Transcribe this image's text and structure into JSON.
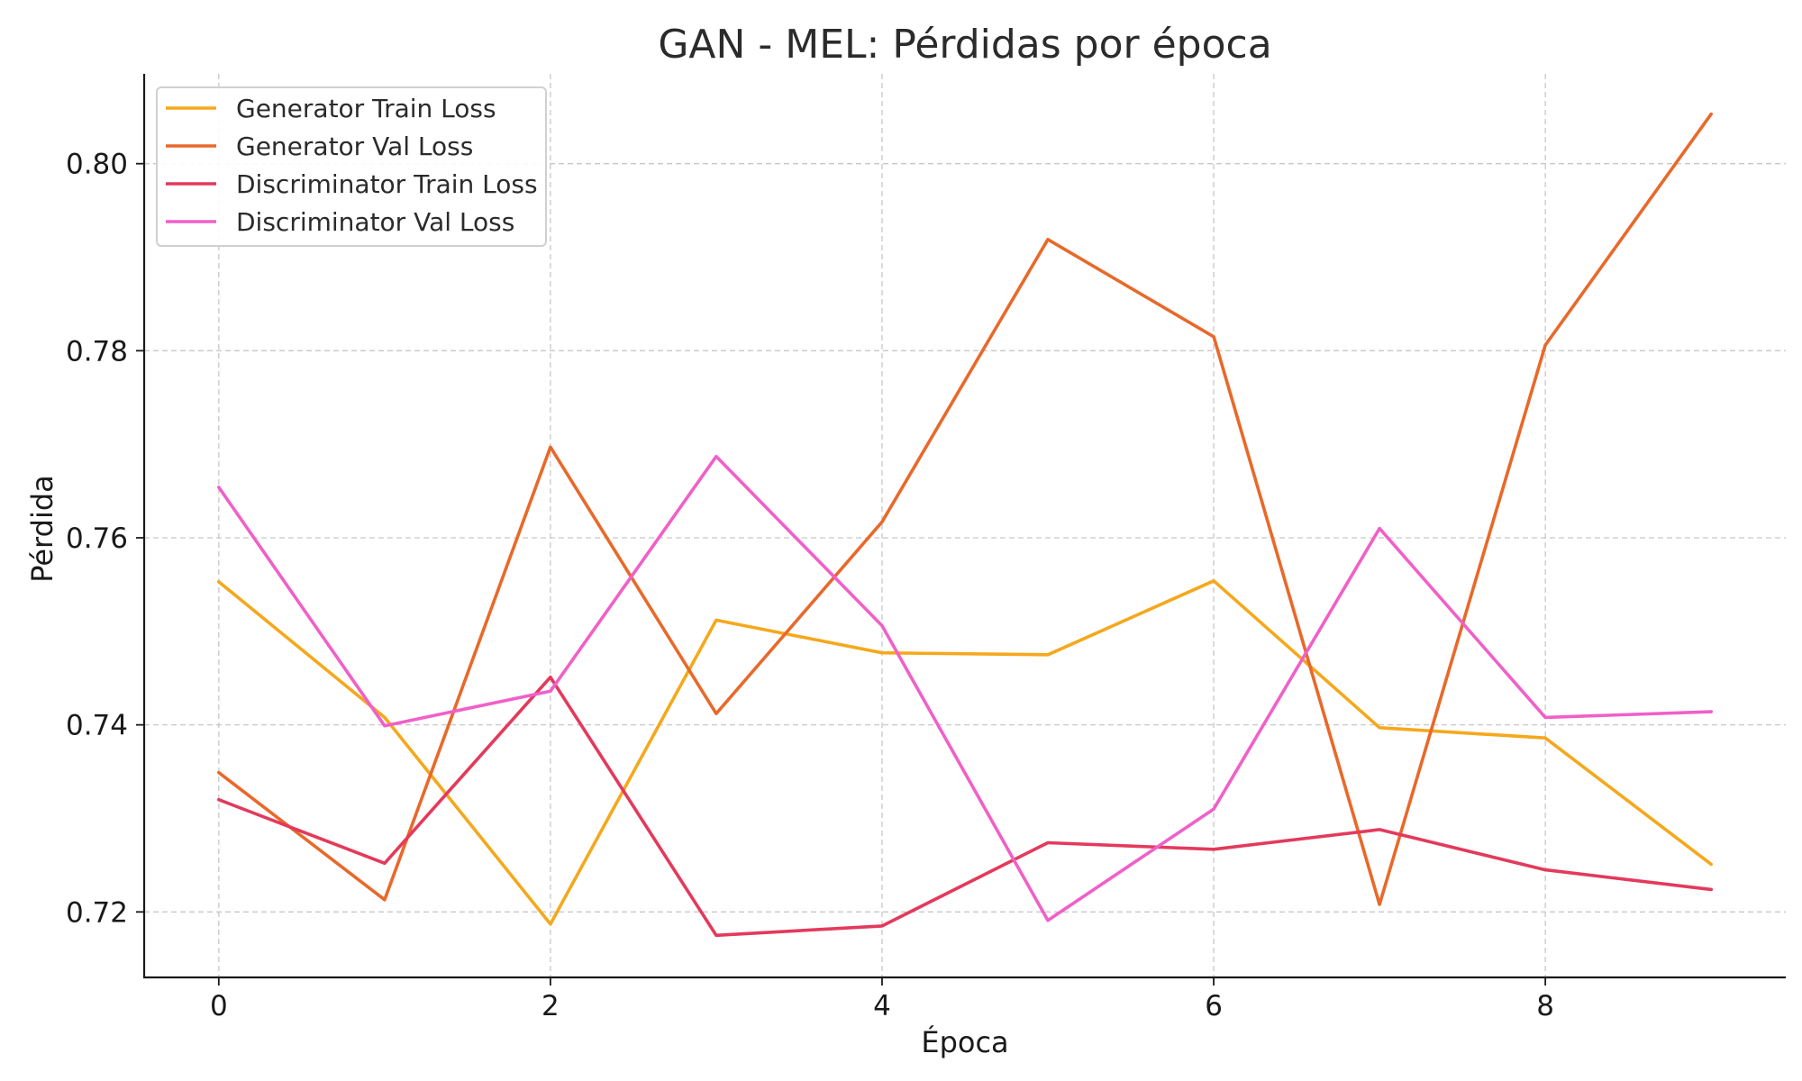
{
  "chart_data": {
    "type": "line",
    "title": "GAN - MEL: Pérdidas por época",
    "xlabel": "Época",
    "ylabel": "Pérdida",
    "x": [
      0,
      1,
      2,
      3,
      4,
      5,
      6,
      7,
      8,
      9
    ],
    "xlim": [
      -0.45,
      9.45
    ],
    "ylim": [
      0.713,
      0.8096
    ],
    "xticks": [
      0,
      2,
      4,
      6,
      8
    ],
    "yticks": [
      0.72,
      0.74,
      0.76,
      0.78,
      0.8
    ],
    "ytick_labels": [
      "0.72",
      "0.74",
      "0.76",
      "0.78",
      "0.80"
    ],
    "grid": true,
    "legend_position": "top-left",
    "series": [
      {
        "name": "Generator Train Loss",
        "color": "#F5A81C",
        "values": [
          0.7553,
          0.7408,
          0.7187,
          0.7512,
          0.7477,
          0.7475,
          0.7554,
          0.7397,
          0.7386,
          0.7251
        ]
      },
      {
        "name": "Generator Val Loss",
        "color": "#E8692A",
        "values": [
          0.7349,
          0.7213,
          0.7697,
          0.7412,
          0.7617,
          0.7919,
          0.7815,
          0.7208,
          0.7806,
          0.8053
        ]
      },
      {
        "name": "Discriminator Train Loss",
        "color": "#E33A5C",
        "values": [
          0.732,
          0.7252,
          0.7451,
          0.7175,
          0.7185,
          0.7274,
          0.7267,
          0.7288,
          0.7245,
          0.7224
        ]
      },
      {
        "name": "Discriminator Val Loss",
        "color": "#F060C8",
        "values": [
          0.7654,
          0.7399,
          0.7436,
          0.7687,
          0.7506,
          0.7191,
          0.731,
          0.761,
          0.7408,
          0.7414
        ]
      }
    ]
  }
}
